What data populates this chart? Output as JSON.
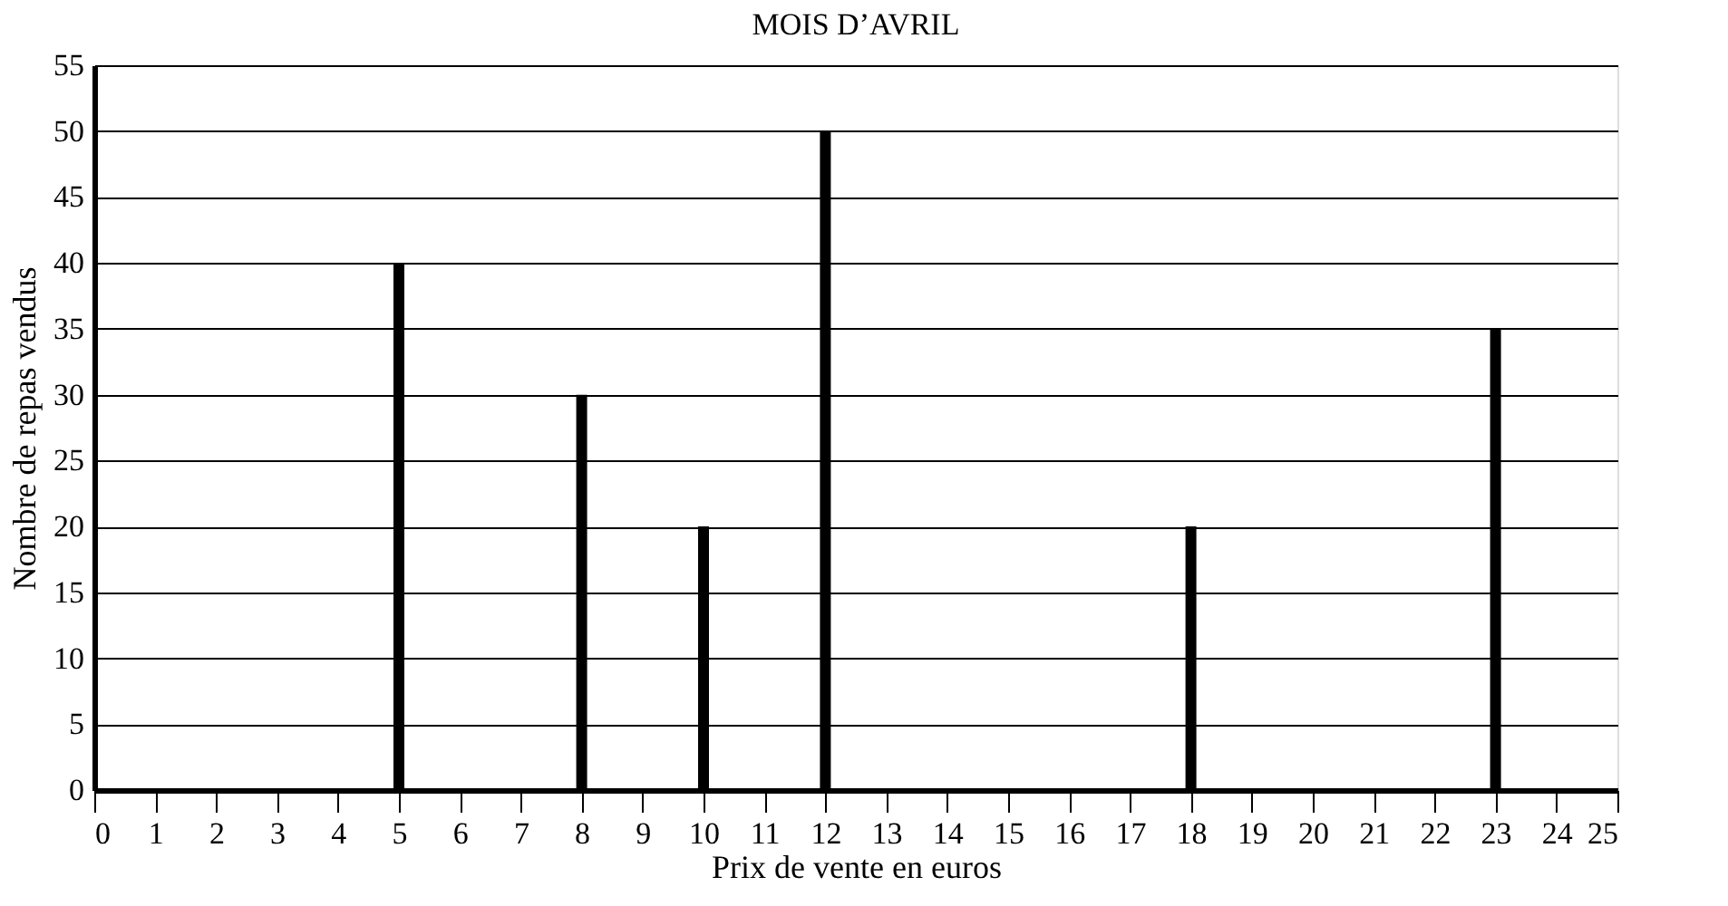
{
  "chart_data": {
    "type": "bar",
    "title": "MOIS D’AVRIL",
    "xlabel": "Prix de vente en euros",
    "ylabel": "Nombre de repas vendus",
    "x": [
      5,
      8,
      10,
      12,
      18,
      23
    ],
    "values": [
      40,
      30,
      20,
      50,
      20,
      35
    ],
    "color": "#000000",
    "xlim": [
      0,
      25
    ],
    "xticks": [
      0,
      1,
      2,
      3,
      4,
      5,
      6,
      7,
      8,
      9,
      10,
      11,
      12,
      13,
      14,
      15,
      16,
      17,
      18,
      19,
      20,
      21,
      22,
      23,
      24,
      25
    ],
    "ylim": [
      0,
      55
    ],
    "yticks": [
      0,
      5,
      10,
      15,
      20,
      25,
      30,
      35,
      40,
      45,
      50,
      55
    ],
    "grid": "y"
  }
}
